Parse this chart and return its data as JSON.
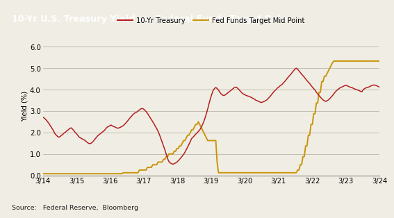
{
  "title": "10-Yr U.S. Treasury Yield vs. Federal Funds Target Rate",
  "title_bg": "#3a3a3a",
  "title_color": "#ffffff",
  "ylabel": "Yield (%)",
  "source": "Source:   Federal Reserve,  Bloomberg",
  "legend_entries": [
    "10-Yr Treasury",
    "Fed Funds Target Mid Point"
  ],
  "treasury_color": "#b22020",
  "fed_funds_color": "#c8960c",
  "background_color": "#f0ede4",
  "plot_bg": "#f0ede4",
  "ylim": [
    0.0,
    6.5
  ],
  "yticks": [
    0.0,
    1.0,
    2.0,
    3.0,
    4.0,
    5.0,
    6.0
  ],
  "x_tick_labels": [
    "3/14",
    "3/15",
    "3/16",
    "3/17",
    "3/18",
    "3/19",
    "3/20",
    "3/21",
    "3/22",
    "3/23",
    "3/24"
  ],
  "treasury_y": [
    2.72,
    2.68,
    2.62,
    2.55,
    2.47,
    2.38,
    2.28,
    2.18,
    2.08,
    1.95,
    1.88,
    1.82,
    1.78,
    1.82,
    1.87,
    1.92,
    1.98,
    2.02,
    2.08,
    2.13,
    2.18,
    2.22,
    2.17,
    2.1,
    2.02,
    1.95,
    1.88,
    1.8,
    1.75,
    1.72,
    1.68,
    1.65,
    1.6,
    1.55,
    1.5,
    1.48,
    1.5,
    1.55,
    1.62,
    1.7,
    1.78,
    1.85,
    1.9,
    1.95,
    2.0,
    2.05,
    2.1,
    2.18,
    2.25,
    2.28,
    2.32,
    2.35,
    2.3,
    2.28,
    2.25,
    2.22,
    2.2,
    2.22,
    2.25,
    2.28,
    2.32,
    2.38,
    2.45,
    2.52,
    2.6,
    2.68,
    2.75,
    2.82,
    2.88,
    2.92,
    2.95,
    3.0,
    3.05,
    3.1,
    3.12,
    3.1,
    3.05,
    2.98,
    2.9,
    2.8,
    2.7,
    2.6,
    2.5,
    2.4,
    2.28,
    2.18,
    2.05,
    1.9,
    1.72,
    1.55,
    1.38,
    1.2,
    1.0,
    0.8,
    0.65,
    0.58,
    0.55,
    0.52,
    0.55,
    0.58,
    0.62,
    0.68,
    0.75,
    0.82,
    0.9,
    0.98,
    1.08,
    1.2,
    1.32,
    1.45,
    1.58,
    1.72,
    1.78,
    1.85,
    1.92,
    1.98,
    2.05,
    2.12,
    2.22,
    2.35,
    2.5,
    2.68,
    2.88,
    3.1,
    3.35,
    3.58,
    3.78,
    3.95,
    4.05,
    4.1,
    4.05,
    3.98,
    3.88,
    3.8,
    3.75,
    3.72,
    3.75,
    3.8,
    3.85,
    3.9,
    3.95,
    4.0,
    4.05,
    4.1,
    4.12,
    4.08,
    4.02,
    3.95,
    3.88,
    3.82,
    3.78,
    3.75,
    3.72,
    3.7,
    3.68,
    3.65,
    3.62,
    3.58,
    3.55,
    3.5,
    3.48,
    3.45,
    3.42,
    3.4,
    3.42,
    3.45,
    3.48,
    3.52,
    3.58,
    3.65,
    3.72,
    3.8,
    3.88,
    3.95,
    4.0,
    4.08,
    4.12,
    4.18,
    4.22,
    4.28,
    4.35,
    4.42,
    4.5,
    4.58,
    4.65,
    4.72,
    4.8,
    4.88,
    4.95,
    5.0,
    4.95,
    4.88,
    4.8,
    4.72,
    4.65,
    4.58,
    4.5,
    4.42,
    4.35,
    4.28,
    4.2,
    4.12,
    4.05,
    3.98,
    3.88,
    3.8,
    3.72,
    3.65,
    3.58,
    3.52,
    3.48,
    3.45,
    3.48,
    3.52,
    3.58,
    3.65,
    3.72,
    3.8,
    3.88,
    3.95,
    4.0,
    4.05,
    4.1,
    4.12,
    4.15,
    4.18,
    4.2,
    4.18,
    4.15,
    4.12,
    4.1,
    4.08,
    4.05,
    4.02,
    4.0,
    3.98,
    3.95,
    3.92,
    3.9,
    4.0,
    4.05,
    4.08,
    4.1,
    4.12,
    4.15,
    4.18,
    4.2,
    4.22,
    4.2,
    4.18,
    4.15,
    4.12
  ],
  "fed_y": [
    0.08,
    0.08,
    0.08,
    0.08,
    0.08,
    0.08,
    0.08,
    0.08,
    0.08,
    0.08,
    0.08,
    0.08,
    0.08,
    0.08,
    0.08,
    0.08,
    0.08,
    0.08,
    0.08,
    0.08,
    0.08,
    0.08,
    0.08,
    0.08,
    0.08,
    0.08,
    0.08,
    0.08,
    0.08,
    0.08,
    0.08,
    0.08,
    0.08,
    0.08,
    0.08,
    0.08,
    0.08,
    0.08,
    0.08,
    0.08,
    0.08,
    0.08,
    0.08,
    0.08,
    0.08,
    0.08,
    0.08,
    0.08,
    0.08,
    0.08,
    0.08,
    0.08,
    0.08,
    0.08,
    0.08,
    0.08,
    0.08,
    0.08,
    0.08,
    0.08,
    0.125,
    0.125,
    0.125,
    0.125,
    0.125,
    0.125,
    0.125,
    0.125,
    0.125,
    0.125,
    0.125,
    0.125,
    0.25,
    0.25,
    0.25,
    0.25,
    0.25,
    0.25,
    0.375,
    0.375,
    0.375,
    0.375,
    0.5,
    0.5,
    0.5,
    0.5,
    0.625,
    0.625,
    0.625,
    0.625,
    0.75,
    0.75,
    0.875,
    0.875,
    1.0,
    1.0,
    1.0,
    1.0,
    1.125,
    1.125,
    1.25,
    1.25,
    1.375,
    1.375,
    1.5,
    1.625,
    1.625,
    1.75,
    1.875,
    1.875,
    2.0,
    2.125,
    2.125,
    2.25,
    2.375,
    2.375,
    2.5,
    2.375,
    2.25,
    2.125,
    2.0,
    1.875,
    1.75,
    1.625,
    1.625,
    1.625,
    1.625,
    1.625,
    1.625,
    1.625,
    0.625,
    0.125,
    0.125,
    0.125,
    0.125,
    0.125,
    0.125,
    0.125,
    0.125,
    0.125,
    0.125,
    0.125,
    0.125,
    0.125,
    0.125,
    0.125,
    0.125,
    0.125,
    0.125,
    0.125,
    0.125,
    0.125,
    0.125,
    0.125,
    0.125,
    0.125,
    0.125,
    0.125,
    0.125,
    0.125,
    0.125,
    0.125,
    0.125,
    0.125,
    0.125,
    0.125,
    0.125,
    0.125,
    0.125,
    0.125,
    0.125,
    0.125,
    0.125,
    0.125,
    0.125,
    0.125,
    0.125,
    0.125,
    0.125,
    0.125,
    0.125,
    0.125,
    0.125,
    0.125,
    0.125,
    0.125,
    0.125,
    0.125,
    0.125,
    0.125,
    0.25,
    0.25,
    0.5,
    0.5,
    0.875,
    0.875,
    1.375,
    1.375,
    1.875,
    1.875,
    2.375,
    2.375,
    2.875,
    2.875,
    3.375,
    3.375,
    3.875,
    3.875,
    4.375,
    4.375,
    4.625,
    4.625,
    4.75,
    4.875,
    5.0,
    5.125,
    5.25,
    5.33,
    5.33,
    5.33,
    5.33,
    5.33,
    5.33,
    5.33,
    5.33,
    5.33,
    5.33,
    5.33,
    5.33,
    5.33,
    5.33,
    5.33,
    5.33,
    5.33,
    5.33,
    5.33,
    5.33,
    5.33,
    5.33,
    5.33,
    5.33,
    5.33,
    5.33,
    5.33,
    5.33,
    5.33,
    5.33,
    5.33,
    5.33,
    5.33,
    5.33,
    5.33
  ]
}
